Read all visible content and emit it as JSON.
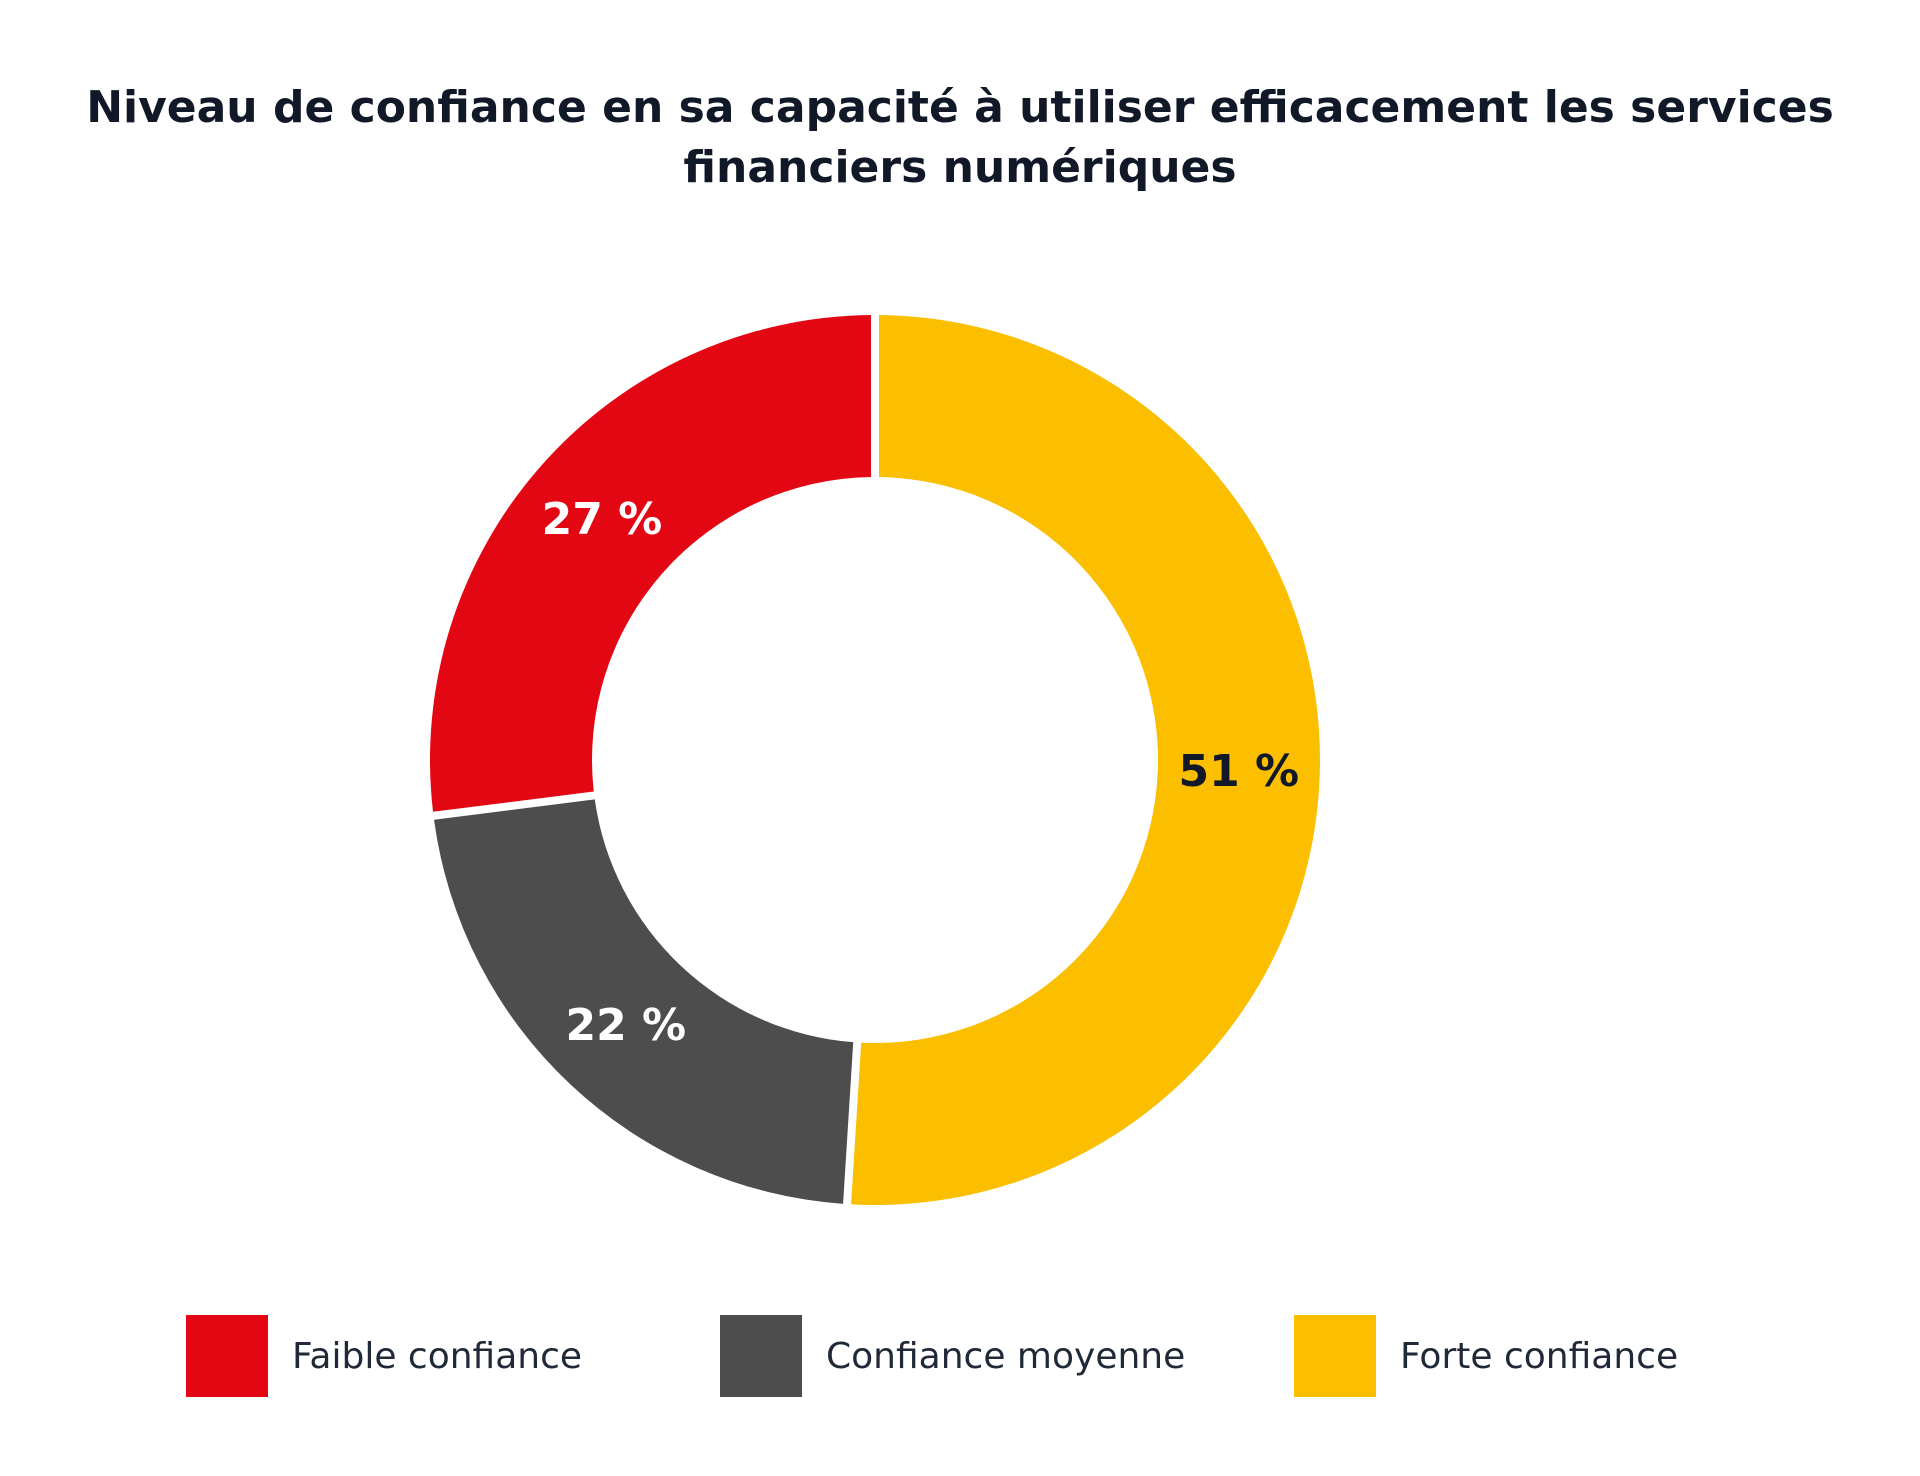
{
  "chart_data": {
    "type": "donut",
    "title_lines": [
      "Niveau de confiance en sa capacité à utiliser efficacement les services",
      "financiers numériques"
    ],
    "categories": [
      "Forte confiance",
      "Confiance moyenne",
      "Faible confiance"
    ],
    "values": [
      51,
      22,
      27
    ],
    "labels": [
      "51 %",
      "22 %",
      "27 %"
    ],
    "colors": [
      "#FBBF00",
      "#4D4D4D",
      "#E30613"
    ],
    "label_colors": [
      "#111827",
      "#ffffff",
      "#ffffff"
    ],
    "start_angle": "top, clockwise",
    "legend_position": "bottom",
    "legend": [
      {
        "label": "Faible confiance",
        "color": "#E30613"
      },
      {
        "label": "Confiance moyenne",
        "color": "#4D4D4D"
      },
      {
        "label": "Forte confiance",
        "color": "#FBBF00"
      }
    ]
  }
}
